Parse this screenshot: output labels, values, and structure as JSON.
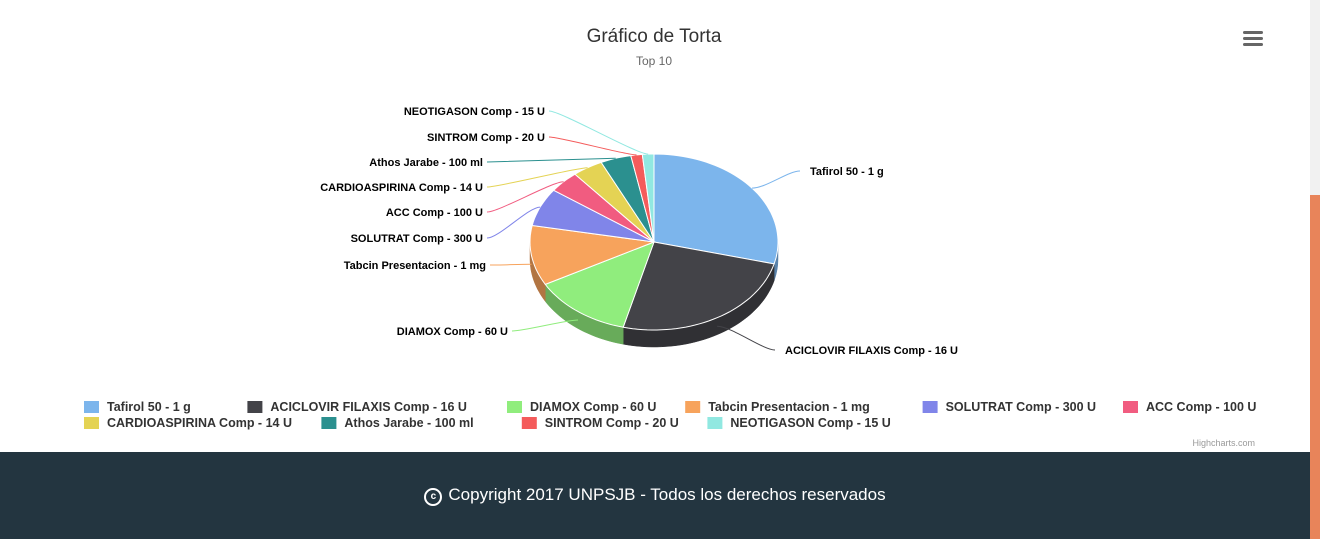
{
  "chart_data": {
    "type": "pie",
    "title": "Gráfico de Torta",
    "subtitle": "Top 10",
    "categories": [
      "Tafirol 50 - 1 g",
      "ACICLOVIR FILAXIS Comp - 16 U",
      "DIAMOX Comp - 60 U",
      "Tabcin Presentacion - 1 mg",
      "SOLUTRAT Comp - 300 U",
      "ACC Comp - 100 U",
      "CARDIOASPIRINA Comp - 14 U",
      "Athos Jarabe - 100 ml",
      "SINTROM Comp - 20 U",
      "NEOTIGASON Comp - 15 U"
    ],
    "values": [
      29,
      25,
      13,
      11,
      7,
      4,
      4,
      4,
      1.5,
      1.5
    ],
    "colors": [
      "#7cb5ec",
      "#434348",
      "#90ed7d",
      "#f7a35c",
      "#8085e9",
      "#f15c80",
      "#e4d354",
      "#2b908f",
      "#f45b5b",
      "#91e8e1"
    ],
    "legend_placement": "bottom",
    "three_d": true
  },
  "credits": "Highcharts.com",
  "menu_icon": "hamburger-menu-icon",
  "footer": {
    "copyright_icon": "copyright-icon",
    "text": "Copyright 2017 UNPSJB - Todos los derechos reservados"
  }
}
